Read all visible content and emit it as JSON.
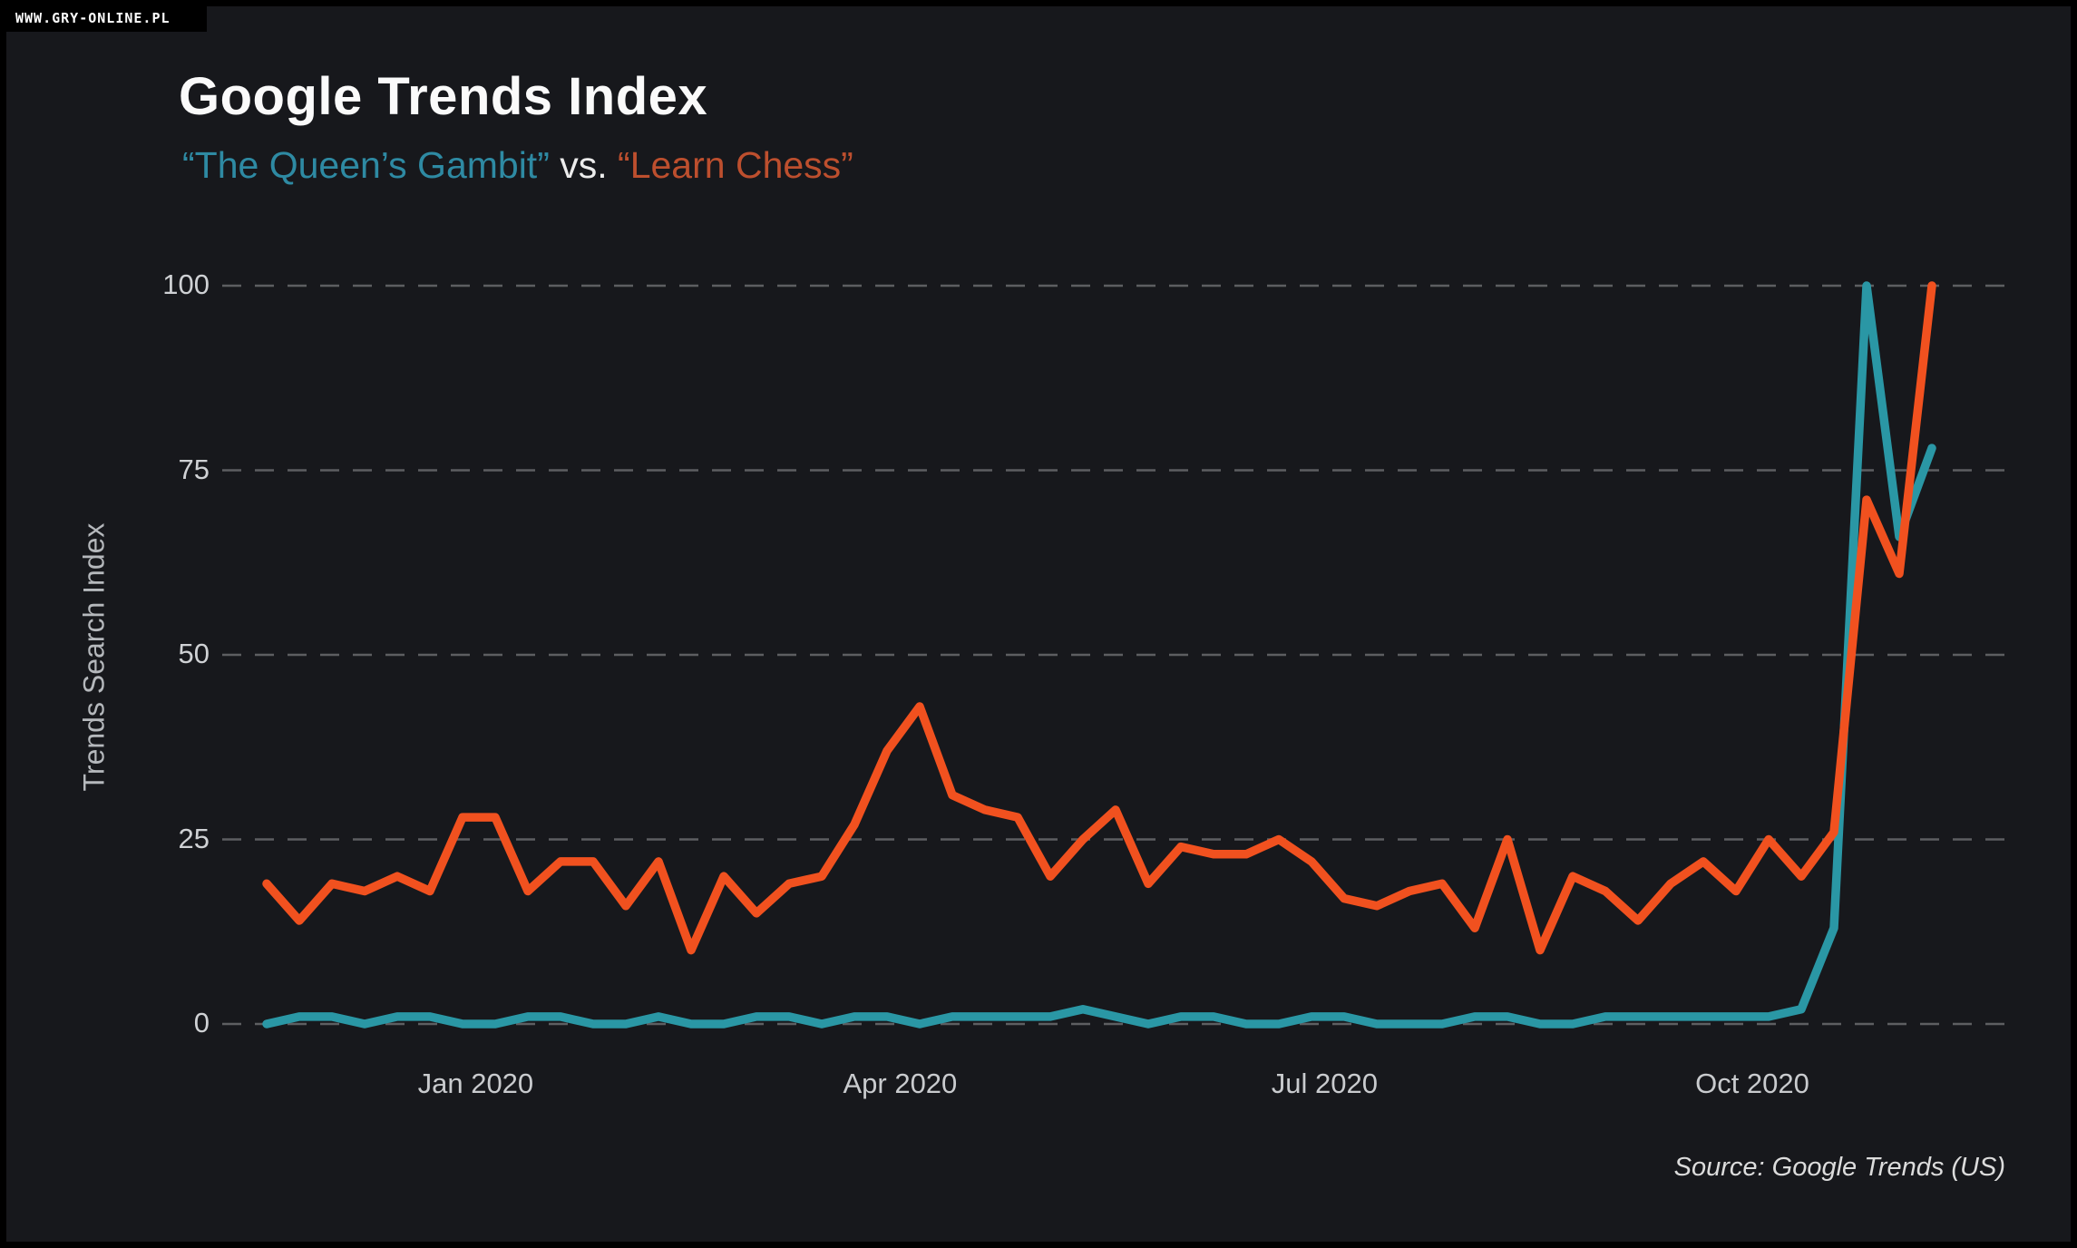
{
  "watermark": "WWW.GRY-ONLINE.PL",
  "header": {
    "title": "Google Trends Index",
    "subtitle_series1": "“The Queen’s Gambit”",
    "subtitle_vs": " vs. ",
    "subtitle_series2": "“Learn Chess”"
  },
  "footer": {
    "source": "Source: Google Trends (US)"
  },
  "colors": {
    "background": "#17181c",
    "frame": "#000000",
    "title_text": "#fafafa",
    "subtitle_series1": "#2e8aa3",
    "subtitle_series2": "#bd4f2e",
    "queens_gambit_line": "#2a97a5",
    "learn_chess_line": "#f1511f",
    "gridline": "#5d5e61",
    "tick_text": "#cccfd2",
    "axis_label_text": "#b5b8bc"
  },
  "chart_data": {
    "type": "line",
    "title": "Google Trends Index",
    "subtitle": "“The Queen’s Gambit” vs. “Learn Chess”",
    "ylabel": "Trends Search Index",
    "xlabel": "",
    "ylim": [
      0,
      100
    ],
    "y_ticks": [
      0,
      25,
      50,
      75,
      100
    ],
    "y_tick_labels": [
      "0",
      "25",
      "50",
      "75",
      "100"
    ],
    "x_tick_labels": [
      "Jan 2020",
      "Apr 2020",
      "Jul 2020",
      "Oct 2020"
    ],
    "x_tick_week_index": [
      6.4,
      19.4,
      32.4,
      45.5
    ],
    "x_unit": "week",
    "n_points": 52,
    "grid": "dashed horizontal only",
    "legend_position": "none (series identified by colored subtitle)",
    "series": [
      {
        "name": "The Queen's Gambit",
        "color": "#2a97a5",
        "values": [
          0,
          1,
          1,
          0,
          1,
          1,
          0,
          0,
          1,
          1,
          0,
          0,
          1,
          0,
          0,
          1,
          1,
          0,
          1,
          1,
          0,
          1,
          1,
          1,
          1,
          2,
          1,
          0,
          1,
          1,
          0,
          0,
          1,
          1,
          0,
          0,
          0,
          1,
          1,
          0,
          0,
          1,
          1,
          1,
          1,
          1,
          1,
          2,
          13,
          100,
          66,
          78
        ]
      },
      {
        "name": "Learn Chess",
        "color": "#f1511f",
        "values": [
          19,
          14,
          19,
          18,
          20,
          18,
          28,
          28,
          18,
          22,
          22,
          16,
          22,
          10,
          20,
          15,
          19,
          20,
          27,
          37,
          43,
          31,
          29,
          28,
          20,
          25,
          29,
          19,
          24,
          23,
          23,
          25,
          22,
          17,
          16,
          18,
          19,
          13,
          25,
          10,
          20,
          18,
          14,
          19,
          22,
          18,
          25,
          20,
          26,
          71,
          61,
          100
        ]
      }
    ]
  }
}
